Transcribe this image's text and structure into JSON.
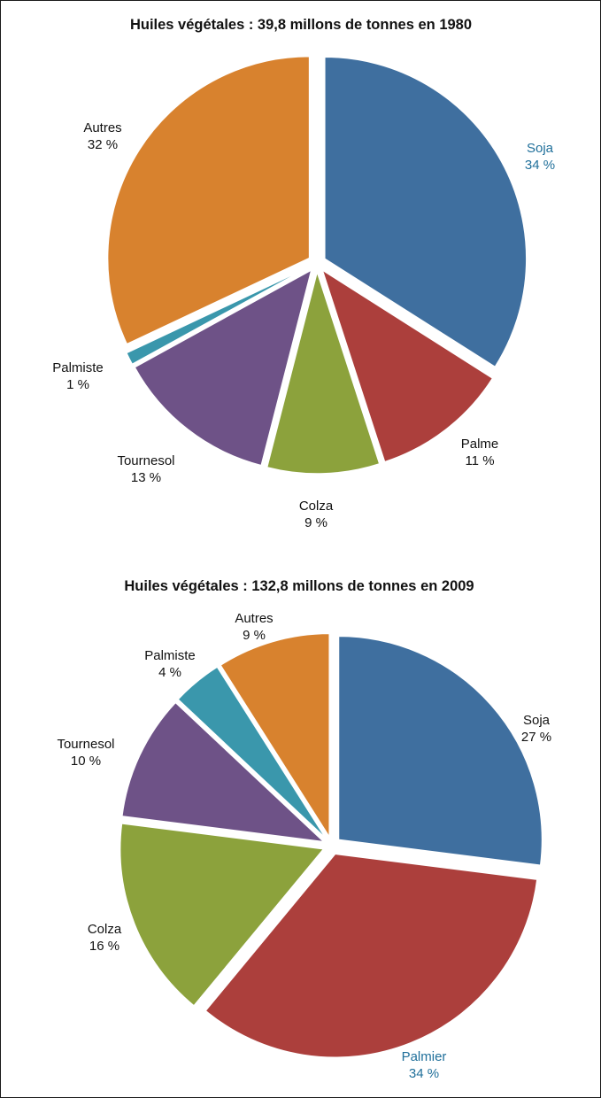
{
  "chart_data": [
    {
      "type": "pie",
      "title": "Huiles végétales : 39,8 millons de tonnes en 1980",
      "slices": [
        {
          "name": "Soja",
          "value": 34,
          "label": "34 %",
          "color": "#3f6f9f",
          "highlight": true
        },
        {
          "name": "Palme",
          "value": 11,
          "label": "11 %",
          "color": "#ac3f3c",
          "highlight": false
        },
        {
          "name": "Colza",
          "value": 9,
          "label": "9 %",
          "color": "#8ca23c",
          "highlight": false
        },
        {
          "name": "Tournesol",
          "value": 13,
          "label": "13 %",
          "color": "#6e5287",
          "highlight": false
        },
        {
          "name": "Palmiste",
          "value": 1,
          "label": "1 %",
          "color": "#3a97ac",
          "highlight": false
        },
        {
          "name": "Autres",
          "value": 32,
          "label": "32 %",
          "color": "#d8822e",
          "highlight": false
        }
      ]
    },
    {
      "type": "pie",
      "title": "Huiles végétales : 132,8 millons de tonnes en 2009",
      "slices": [
        {
          "name": "Soja",
          "value": 27,
          "label": "27 %",
          "color": "#3f6f9f",
          "highlight": false
        },
        {
          "name": "Palmier",
          "value": 34,
          "label": "34 %",
          "color": "#ac3f3c",
          "highlight": true
        },
        {
          "name": "Colza",
          "value": 16,
          "label": "16 %",
          "color": "#8ca23c",
          "highlight": false
        },
        {
          "name": "Tournesol",
          "value": 10,
          "label": "10 %",
          "color": "#6e5287",
          "highlight": false
        },
        {
          "name": "Palmiste",
          "value": 4,
          "label": "4 %",
          "color": "#3a97ac",
          "highlight": false
        },
        {
          "name": "Autres",
          "value": 9,
          "label": "9 %",
          "color": "#d8822e",
          "highlight": false
        }
      ]
    }
  ]
}
